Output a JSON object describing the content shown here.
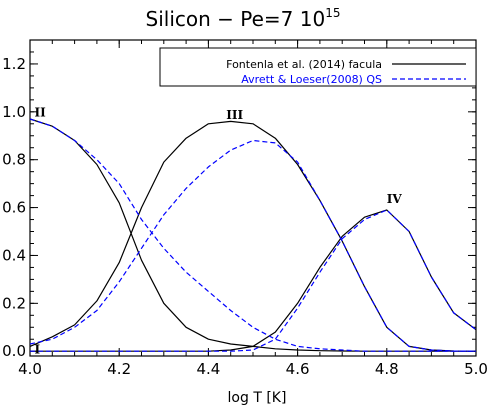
{
  "chart_data": {
    "type": "line",
    "title": "Silicon  −  Pe=7  10",
    "title_superscript": "15",
    "xlabel": "log T [K]",
    "ylabel": "",
    "xlim": [
      4.0,
      5.0
    ],
    "ylim": [
      -0.02,
      1.3
    ],
    "xticks": [
      4.0,
      4.2,
      4.4,
      4.6,
      4.8,
      5.0
    ],
    "xtick_labels": [
      "4.0",
      "4.2",
      "4.4",
      "4.6",
      "4.8",
      "5.0"
    ],
    "yticks": [
      0.0,
      0.2,
      0.4,
      0.6,
      0.8,
      1.0,
      1.2
    ],
    "ytick_labels": [
      "0.0",
      "0.2",
      "0.4",
      "0.6",
      "0.8",
      "1.0",
      "1.2"
    ],
    "grid": false,
    "legend_position": "top-right",
    "legend": [
      {
        "label": "Fontenla et al. (2014) facula",
        "color": "#000000",
        "dash": "solid"
      },
      {
        "label": "Avrett & Loeser(2008) QS",
        "color": "#0000ff",
        "dash": "dashed"
      }
    ],
    "x": [
      4.0,
      4.05,
      4.1,
      4.15,
      4.2,
      4.25,
      4.3,
      4.35,
      4.4,
      4.45,
      4.5,
      4.55,
      4.6,
      4.65,
      4.7,
      4.75,
      4.8,
      4.85,
      4.9,
      4.95,
      5.0
    ],
    "series": [
      {
        "name": "Fontenla et al. (2014) facula",
        "ion": "II",
        "color": "#000000",
        "dash": "solid",
        "values": [
          0.97,
          0.94,
          0.88,
          0.78,
          0.62,
          0.38,
          0.2,
          0.1,
          0.05,
          0.03,
          0.02,
          0.01,
          0.005,
          0.002,
          0.001,
          0.0,
          0.0,
          0.0,
          0.0,
          0.0,
          0.0
        ]
      },
      {
        "name": "Fontenla et al. (2014) facula",
        "ion": "III",
        "color": "#000000",
        "dash": "solid",
        "values": [
          0.02,
          0.06,
          0.11,
          0.21,
          0.37,
          0.6,
          0.79,
          0.89,
          0.95,
          0.96,
          0.95,
          0.89,
          0.78,
          0.63,
          0.46,
          0.27,
          0.1,
          0.02,
          0.005,
          0.001,
          0.0
        ]
      },
      {
        "name": "Fontenla et al. (2014) facula",
        "ion": "IV",
        "color": "#000000",
        "dash": "solid",
        "values": [
          0.0,
          0.0,
          0.0,
          0.0,
          0.0,
          0.0,
          0.0,
          0.0,
          0.0,
          0.005,
          0.02,
          0.08,
          0.2,
          0.35,
          0.48,
          0.56,
          0.59,
          0.5,
          0.31,
          0.16,
          0.09
        ]
      },
      {
        "name": "Avrett & Loeser(2008) QS",
        "ion": "II",
        "color": "#0000ff",
        "dash": "dashed",
        "values": [
          0.97,
          0.94,
          0.88,
          0.8,
          0.7,
          0.55,
          0.43,
          0.33,
          0.25,
          0.17,
          0.1,
          0.05,
          0.02,
          0.01,
          0.005,
          0.0,
          0.0,
          0.0,
          0.0,
          0.0,
          0.0
        ]
      },
      {
        "name": "Avrett & Loeser(2008) QS",
        "ion": "III",
        "color": "#0000ff",
        "dash": "dashed",
        "values": [
          0.03,
          0.05,
          0.1,
          0.17,
          0.29,
          0.43,
          0.57,
          0.68,
          0.77,
          0.84,
          0.88,
          0.87,
          0.79,
          0.63,
          0.46,
          0.27,
          0.1,
          0.02,
          0.005,
          0.001,
          0.0
        ]
      },
      {
        "name": "Avrett & Loeser(2008) QS",
        "ion": "IV",
        "color": "#0000ff",
        "dash": "dashed",
        "values": [
          0.0,
          0.0,
          0.0,
          0.0,
          0.0,
          0.0,
          0.0,
          0.0,
          0.0,
          0.0,
          0.005,
          0.05,
          0.18,
          0.33,
          0.47,
          0.55,
          0.59,
          0.5,
          0.31,
          0.16,
          0.09
        ]
      }
    ],
    "annotations": [
      {
        "text": "I",
        "x": 4.01,
        "y": -0.01
      },
      {
        "text": "II",
        "x": 4.01,
        "y": 0.98
      },
      {
        "text": "III",
        "x": 4.44,
        "y": 0.97
      },
      {
        "text": "IV",
        "x": 4.8,
        "y": 0.62
      }
    ]
  }
}
